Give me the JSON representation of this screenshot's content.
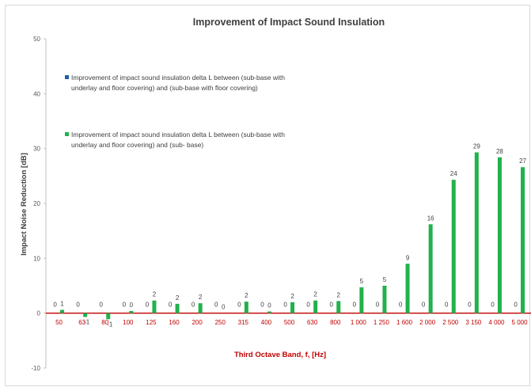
{
  "chart_data": {
    "type": "bar",
    "title": "Improvement of Impact Sound Insulation",
    "xlabel": "Third Octave Band, f, [Hz]",
    "ylabel": "Impact Noise Reduction [dB]",
    "ylim": [
      -10,
      50
    ],
    "yticks": [
      -10,
      0,
      10,
      20,
      30,
      40,
      50
    ],
    "grid": false,
    "legend_position": "top-left",
    "categories": [
      "50",
      "63",
      "80",
      "100",
      "125",
      "160",
      "200",
      "250",
      "315",
      "400",
      "500",
      "630",
      "800",
      "1 000",
      "1 250",
      "1 600",
      "2 000",
      "2 500",
      "3 150",
      "4 000",
      "5 000"
    ],
    "series": [
      {
        "name": "Improvement of impact sound insulation delta L between (sub-base with underlay and floor covering) and (sub-base with floor covering)",
        "legend_lines": [
          "Improvement of impact sound insulation delta L between (sub-base with",
          "underlay and floor covering) and (sub-base with floor covering)"
        ],
        "color": "#1f5fa8",
        "values": [
          0,
          0,
          0,
          0,
          0,
          0,
          0,
          0,
          0,
          0,
          0,
          0,
          0,
          0,
          0,
          0,
          0,
          0,
          0,
          0,
          0
        ],
        "labels": [
          "0",
          "0",
          "0",
          "0",
          "0",
          "0",
          "0",
          "0",
          "0",
          "0",
          "0",
          "0",
          "0",
          "0",
          "0",
          "0",
          "0",
          "0",
          "0",
          "0",
          "0"
        ]
      },
      {
        "name": "Improvement of impact sound insulation delta L between (sub-base with underlay and floor covering) and (sub- base)",
        "legend_lines": [
          "Improvement of impact sound insulation delta L between (sub-base with",
          "underlay and floor covering) and (sub- base)"
        ],
        "color": "#22b14c",
        "values": [
          0.6,
          -0.7,
          -1.1,
          0.4,
          2.3,
          1.7,
          1.8,
          0.0,
          2.1,
          0.3,
          2.0,
          2.3,
          2.2,
          4.7,
          5.0,
          9.0,
          16.2,
          24.3,
          29.3,
          28.4,
          26.6
        ],
        "labels": [
          "1",
          "-1",
          "-1",
          "0",
          "2",
          "2",
          "2",
          "0",
          "2",
          "0",
          "2",
          "2",
          "2",
          "5",
          "5",
          "9",
          "16",
          "24",
          "29",
          "28",
          "27"
        ]
      }
    ]
  }
}
